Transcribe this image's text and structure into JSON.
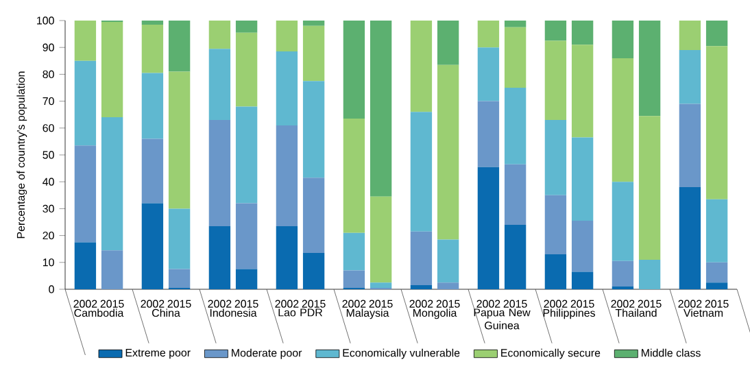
{
  "chart_data": {
    "type": "bar",
    "stacked": true,
    "ylabel": "Percentage of country's population",
    "categories": [
      "2002",
      "2015",
      "2002",
      "2015",
      "2002",
      "2015",
      "2002",
      "2015",
      "2002",
      "2015",
      "2002",
      "2015",
      "2002",
      "2015",
      "2002",
      "2015",
      "2002",
      "2015",
      "2002",
      "2015"
    ],
    "annotations": [
      "Cambodia",
      "China",
      "Indonesia",
      "Lao PDR",
      "Malaysia",
      "Mongolia",
      "Papua New Guinea",
      "Philippines",
      "Thailand",
      "Vietnam"
    ],
    "ylim": [
      0,
      100
    ],
    "yticks": [
      0,
      10,
      20,
      30,
      40,
      50,
      60,
      70,
      80,
      90,
      100
    ],
    "legend": "bottom",
    "series": [
      {
        "name": "Extreme poor",
        "color": "#0a6bb0",
        "values": [
          17.5,
          0,
          32,
          0.5,
          23.5,
          7.5,
          23.5,
          13.5,
          0.5,
          0,
          1.5,
          0,
          45.5,
          24,
          13,
          6.5,
          1,
          0,
          38,
          2.5
        ]
      },
      {
        "name": "Moderate poor",
        "color": "#6a97c9",
        "values": [
          36,
          14.5,
          24,
          7,
          39.5,
          24.5,
          37.5,
          28,
          6.5,
          0.5,
          20,
          2.5,
          24.5,
          22.5,
          22,
          19,
          9.5,
          0,
          31,
          7.5
        ]
      },
      {
        "name": "Economically vulnerable",
        "color": "#5fb8d0",
        "values": [
          31.5,
          49.5,
          24.5,
          22.5,
          26.5,
          36,
          27.5,
          36,
          14,
          2,
          44.5,
          16,
          20,
          28.5,
          28,
          31,
          29.5,
          11,
          20,
          23.5
        ]
      },
      {
        "name": "Economically secure",
        "color": "#9bcf72",
        "values": [
          15,
          35.5,
          18,
          51,
          10.5,
          27.5,
          11.5,
          20.5,
          42.5,
          32,
          34,
          65,
          10,
          22.5,
          29.5,
          34.5,
          46,
          53.5,
          11,
          57
        ]
      },
      {
        "name": "Middle class",
        "color": "#5cb070",
        "values": [
          0,
          0.5,
          1.5,
          19,
          0,
          4.5,
          0,
          2,
          36.5,
          65.5,
          0,
          16.5,
          0,
          2.5,
          7.5,
          9,
          14,
          35.5,
          0,
          9.5
        ]
      }
    ]
  }
}
